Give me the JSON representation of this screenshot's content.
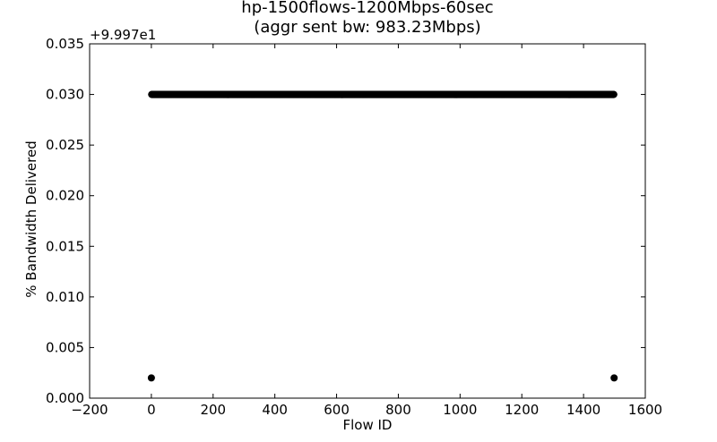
{
  "chart_data": {
    "type": "scatter",
    "title": "hp-1500flows-1200Mbps-60sec",
    "subtitle": "(aggr sent bw: 983.23Mbps)",
    "xlabel": "Flow ID",
    "ylabel": "% Bandwidth Delivered",
    "y_offset_label": "+9.997e1",
    "xlim": [
      -200,
      1600
    ],
    "ylim": [
      0.0,
      0.035
    ],
    "xticks": [
      -200,
      0,
      200,
      400,
      600,
      800,
      1000,
      1200,
      1400,
      1600
    ],
    "xtick_labels": [
      "−200",
      "0",
      "200",
      "400",
      "600",
      "800",
      "1000",
      "1200",
      "1400",
      "1600"
    ],
    "yticks": [
      0.0,
      0.005,
      0.01,
      0.015,
      0.02,
      0.025,
      0.03,
      0.035
    ],
    "ytick_labels": [
      "0.000",
      "0.005",
      "0.010",
      "0.015",
      "0.020",
      "0.025",
      "0.030",
      "0.035"
    ],
    "grid": false,
    "marker_color": "#000000",
    "series": [
      {
        "points_dense_range": {
          "x_from": 1,
          "x_to": 1498,
          "y": 0.03
        },
        "outliers": [
          {
            "x": 0,
            "y": 0.002
          },
          {
            "x": 1499,
            "y": 0.002
          }
        ]
      }
    ]
  }
}
